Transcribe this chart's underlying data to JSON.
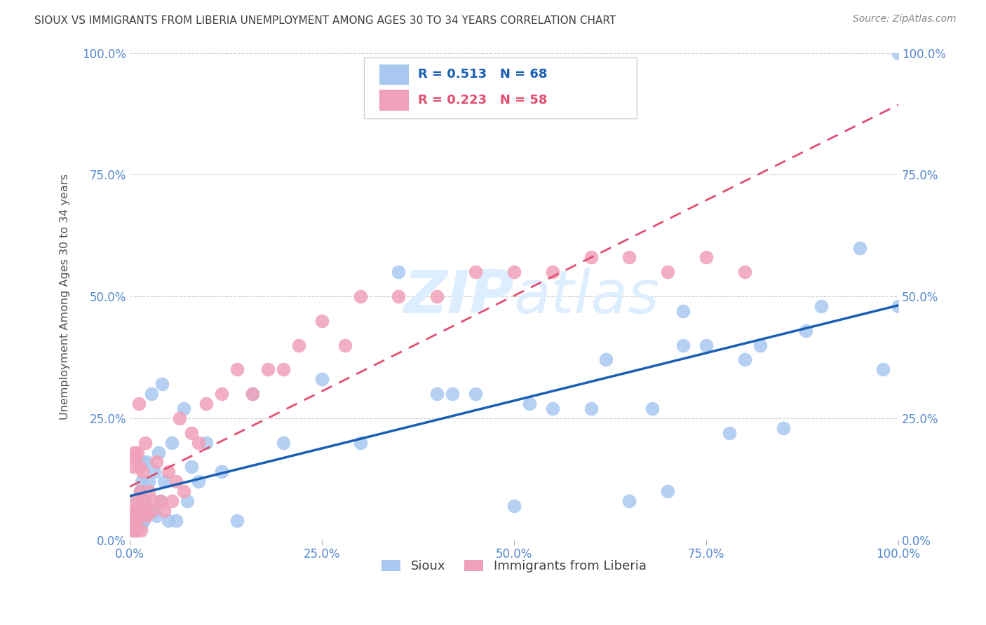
{
  "title": "SIOUX VS IMMIGRANTS FROM LIBERIA UNEMPLOYMENT AMONG AGES 30 TO 34 YEARS CORRELATION CHART",
  "source": "Source: ZipAtlas.com",
  "ylabel": "Unemployment Among Ages 30 to 34 years",
  "legend_sioux": "Sioux",
  "legend_liberia": "Immigrants from Liberia",
  "r_sioux": "0.513",
  "n_sioux": "68",
  "r_liberia": "0.223",
  "n_liberia": "58",
  "xlim": [
    0.0,
    1.0
  ],
  "ylim": [
    0.0,
    1.0
  ],
  "xticks": [
    0.0,
    0.25,
    0.5,
    0.75,
    1.0
  ],
  "yticks": [
    0.0,
    0.25,
    0.5,
    0.75,
    1.0
  ],
  "xtick_labels": [
    "0.0%",
    "25.0%",
    "50.0%",
    "75.0%",
    "100.0%"
  ],
  "ytick_labels": [
    "0.0%",
    "25.0%",
    "50.0%",
    "75.0%",
    "100.0%"
  ],
  "sioux_color": "#a8c8f0",
  "liberia_color": "#f0a0b8",
  "trend_sioux_color": "#1a5fb4",
  "trend_liberia_color": "#e05070",
  "background_color": "#ffffff",
  "grid_color": "#cccccc",
  "title_color": "#404040",
  "axis_label_color": "#555555",
  "tick_label_color": "#5588cc",
  "watermark_color": "#ddeeff",
  "sioux_x": [
    0.004,
    0.005,
    0.006,
    0.007,
    0.008,
    0.008,
    0.009,
    0.01,
    0.01,
    0.012,
    0.013,
    0.014,
    0.015,
    0.016,
    0.017,
    0.018,
    0.019,
    0.02,
    0.022,
    0.025,
    0.027,
    0.028,
    0.03,
    0.032,
    0.035,
    0.038,
    0.04,
    0.042,
    0.045,
    0.05,
    0.055,
    0.06,
    0.07,
    0.075,
    0.08,
    0.09,
    0.1,
    0.12,
    0.14,
    0.16,
    0.2,
    0.25,
    0.3,
    0.35,
    0.4,
    0.42,
    0.45,
    0.5,
    0.52,
    0.55,
    0.6,
    0.62,
    0.65,
    0.68,
    0.7,
    0.72,
    0.75,
    0.78,
    0.8,
    0.82,
    0.85,
    0.88,
    0.9,
    0.95,
    0.98,
    1.0,
    1.0,
    0.72
  ],
  "sioux_y": [
    0.04,
    0.02,
    0.03,
    0.04,
    0.05,
    0.02,
    0.08,
    0.05,
    0.03,
    0.04,
    0.06,
    0.1,
    0.03,
    0.12,
    0.16,
    0.04,
    0.08,
    0.05,
    0.16,
    0.12,
    0.06,
    0.3,
    0.06,
    0.14,
    0.05,
    0.18,
    0.08,
    0.32,
    0.12,
    0.04,
    0.2,
    0.04,
    0.27,
    0.08,
    0.15,
    0.12,
    0.2,
    0.14,
    0.04,
    0.3,
    0.2,
    0.33,
    0.2,
    0.55,
    0.3,
    0.3,
    0.3,
    0.07,
    0.28,
    0.27,
    0.27,
    0.37,
    0.08,
    0.27,
    0.1,
    0.4,
    0.4,
    0.22,
    0.37,
    0.4,
    0.23,
    0.43,
    0.48,
    0.6,
    0.35,
    0.48,
    1.0,
    0.47
  ],
  "liberia_x": [
    0.003,
    0.004,
    0.004,
    0.005,
    0.005,
    0.006,
    0.006,
    0.007,
    0.007,
    0.008,
    0.008,
    0.009,
    0.009,
    0.01,
    0.01,
    0.012,
    0.012,
    0.013,
    0.014,
    0.015,
    0.016,
    0.017,
    0.018,
    0.02,
    0.022,
    0.025,
    0.028,
    0.03,
    0.035,
    0.04,
    0.045,
    0.05,
    0.055,
    0.06,
    0.065,
    0.07,
    0.08,
    0.09,
    0.1,
    0.12,
    0.14,
    0.16,
    0.18,
    0.2,
    0.22,
    0.25,
    0.28,
    0.3,
    0.35,
    0.4,
    0.45,
    0.5,
    0.55,
    0.6,
    0.65,
    0.7,
    0.75,
    0.8
  ],
  "liberia_y": [
    0.02,
    0.05,
    0.03,
    0.06,
    0.15,
    0.18,
    0.04,
    0.04,
    0.17,
    0.03,
    0.08,
    0.05,
    0.02,
    0.06,
    0.18,
    0.05,
    0.28,
    0.15,
    0.1,
    0.02,
    0.08,
    0.14,
    0.06,
    0.2,
    0.05,
    0.1,
    0.06,
    0.08,
    0.16,
    0.08,
    0.06,
    0.14,
    0.08,
    0.12,
    0.25,
    0.1,
    0.22,
    0.2,
    0.28,
    0.3,
    0.35,
    0.3,
    0.35,
    0.35,
    0.4,
    0.45,
    0.4,
    0.5,
    0.5,
    0.5,
    0.55,
    0.55,
    0.55,
    0.58,
    0.58,
    0.55,
    0.58,
    0.55
  ]
}
